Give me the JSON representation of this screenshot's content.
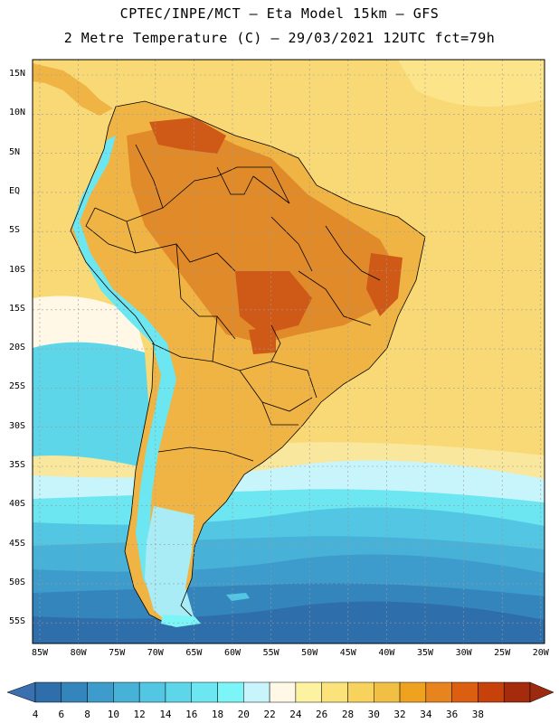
{
  "header": {
    "line1": "CPTEC/INPE/MCT –  Eta Model 15km – GFS",
    "line2": "2 Metre Temperature (C) – 29/03/2021 12UTC fct=79h"
  },
  "axes": {
    "lat_labels": [
      "15N",
      "10N",
      "5N",
      "EQ",
      "5S",
      "10S",
      "15S",
      "20S",
      "25S",
      "30S",
      "35S",
      "40S",
      "45S",
      "50S",
      "55S"
    ],
    "lon_labels": [
      "85W",
      "80W",
      "75W",
      "70W",
      "65W",
      "60W",
      "55W",
      "50W",
      "45W",
      "40W",
      "35W",
      "30W",
      "25W",
      "20W"
    ]
  },
  "colorbar": {
    "levels": [
      "4",
      "6",
      "8",
      "10",
      "12",
      "14",
      "16",
      "18",
      "20",
      "22",
      "24",
      "26",
      "28",
      "30",
      "32",
      "34",
      "36",
      "38"
    ],
    "colors": [
      "#2e6eaa",
      "#3585bd",
      "#3d9ccb",
      "#47b1d8",
      "#52c6e2",
      "#5ed6ea",
      "#6ce6f1",
      "#7cf5f8",
      "#c8f4fb",
      "#fff8e6",
      "#fdf2a0",
      "#fbe27a",
      "#f7d35e",
      "#f2bf45",
      "#eea21f",
      "#e8841d",
      "#dc5f11",
      "#c7410b",
      "#a42b0b"
    ],
    "under_color": "#3a6fb0",
    "over_color": "#9c2a0e"
  },
  "map": {
    "ocean_background": "#f9d975",
    "land_color": "#f0b444",
    "land_hot_color": "#e18a2a",
    "land_hottest_color": "#cf5a18",
    "andes_color": "#6ce6f1",
    "south_atlantic_bands": [
      "#f8e79c",
      "#c8f4fb",
      "#6ce6f1",
      "#52c6e2",
      "#47b1d8",
      "#3d9ccb",
      "#3585bd",
      "#2e6eaa"
    ],
    "border_color": "#000000",
    "grid_color": "#9a9a9a"
  }
}
